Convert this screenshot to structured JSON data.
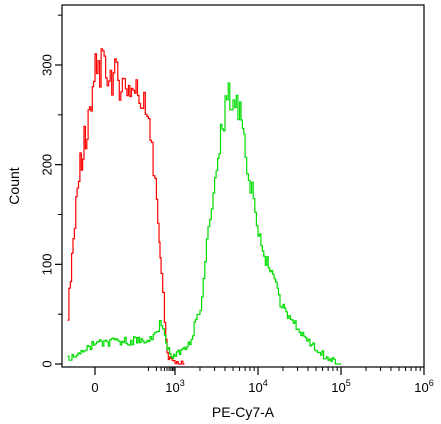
{
  "chart_data": {
    "type": "line",
    "title": "",
    "xlabel": "PE-Cy7-A",
    "ylabel": "Count",
    "x_scale": "biexponential",
    "xlim": [
      -300,
      1000000
    ],
    "ylim": [
      0,
      380
    ],
    "grid": false,
    "legend": "none",
    "y_ticks": [
      {
        "value": 0,
        "label": "0"
      },
      {
        "value": 100,
        "label": "100"
      },
      {
        "value": 200,
        "label": "200"
      },
      {
        "value": 300,
        "label": "300"
      }
    ],
    "x_ticks": [
      {
        "value": 0,
        "base": "0",
        "exp": ""
      },
      {
        "value": 1000,
        "base": "10",
        "exp": "3"
      },
      {
        "value": 10000,
        "base": "10",
        "exp": "4"
      },
      {
        "value": 100000,
        "base": "10",
        "exp": "5"
      },
      {
        "value": 1000000,
        "base": "10",
        "exp": "6"
      }
    ],
    "series": [
      {
        "color": "#ff0000",
        "x": [
          -250,
          -200,
          -150,
          -100,
          -50,
          0,
          50,
          100,
          150,
          200,
          250,
          300,
          400,
          500,
          700,
          1000,
          1300
        ],
        "y": [
          50,
          130,
          190,
          225,
          255,
          300,
          270,
          240,
          200,
          160,
          120,
          90,
          40,
          10,
          3,
          1,
          0
        ]
      },
      {
        "color": "#00dd00",
        "x": [
          -250,
          -100,
          0,
          100,
          200,
          300,
          400,
          500,
          700,
          1000,
          1500,
          2000,
          2500,
          3000,
          4000,
          5000,
          6000,
          7000,
          8000,
          10000,
          15000,
          20000,
          30000,
          50000,
          70000,
          100000
        ],
        "y": [
          5,
          15,
          20,
          25,
          35,
          40,
          30,
          15,
          8,
          8,
          20,
          60,
          130,
          200,
          260,
          270,
          250,
          215,
          180,
          130,
          85,
          55,
          35,
          15,
          5,
          0
        ]
      }
    ]
  }
}
